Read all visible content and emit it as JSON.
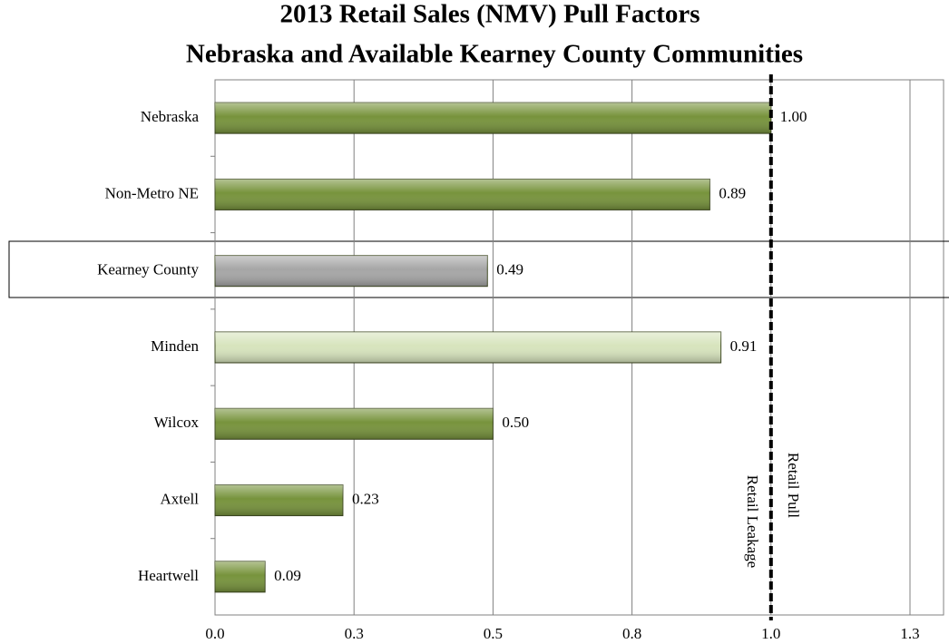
{
  "chart_data": {
    "type": "bar",
    "orientation": "horizontal",
    "title": "2013 Retail Sales (NMV) Pull Factors",
    "subtitle": "Nebraska and Available Kearney County Communities",
    "categories": [
      "Nebraska",
      "Non-Metro NE",
      "Kearney County",
      "Minden",
      "Wilcox",
      "Axtell",
      "Heartwell"
    ],
    "values": [
      1,
      0.89,
      0.49,
      0.91,
      0.5,
      0.23,
      0.09
    ],
    "value_labels": [
      "1.00",
      "0.89",
      "0.49",
      "0.91",
      "0.50",
      "0.23",
      "0.09"
    ],
    "colors": [
      "#77933c",
      "#77933c",
      "#a6a6a6",
      "#d7e4bd",
      "#77933c",
      "#77933c",
      "#77933c"
    ],
    "xlim": [
      0,
      1.25
    ],
    "xticks": [
      {
        "value": 0,
        "label": "0.0"
      },
      {
        "value": 0.25,
        "label": "0.3"
      },
      0.5,
      {
        "value": 0.75,
        "label": "0.8"
      },
      {
        "value": 1,
        "label": "1.0"
      },
      {
        "value": 1.25,
        "label": "1.3"
      }
    ],
    "grid": true,
    "reference_line": 1,
    "annotations": [
      "Retail Leakage",
      "Retail Pull"
    ]
  }
}
